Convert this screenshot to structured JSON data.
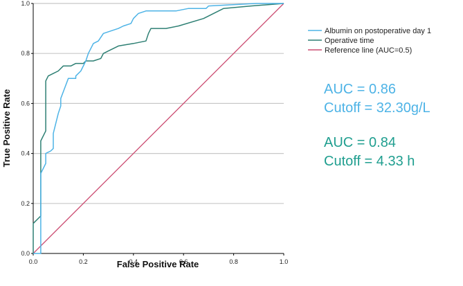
{
  "chart_data": {
    "type": "line",
    "title": "",
    "xlabel": "False Positive Rate",
    "ylabel": "True Positive Rate",
    "xlim": [
      0.0,
      1.0
    ],
    "ylim": [
      0.0,
      1.0
    ],
    "xticks": [
      "0.0",
      "0.2",
      "0.4",
      "0.6",
      "0.8",
      "1.0"
    ],
    "yticks": [
      "0.0",
      "0.2",
      "0.4",
      "0.6",
      "0.8",
      "1.0"
    ],
    "grid": "horizontal",
    "legend_position": "top-right",
    "series": [
      {
        "name": "Albumin  on postoperative day 1",
        "color": "#4db3e6",
        "x": [
          0.0,
          0.02,
          0.03,
          0.03,
          0.05,
          0.05,
          0.07,
          0.08,
          0.08,
          0.1,
          0.11,
          0.11,
          0.14,
          0.17,
          0.17,
          0.19,
          0.21,
          0.22,
          0.24,
          0.26,
          0.28,
          0.31,
          0.34,
          0.36,
          0.39,
          0.4,
          0.42,
          0.45,
          0.49,
          0.57,
          0.62,
          0.69,
          0.7,
          0.89,
          1.0
        ],
        "y": [
          0.0,
          0.0,
          0.0,
          0.32,
          0.36,
          0.4,
          0.41,
          0.42,
          0.48,
          0.56,
          0.59,
          0.62,
          0.7,
          0.7,
          0.71,
          0.73,
          0.77,
          0.8,
          0.84,
          0.85,
          0.88,
          0.89,
          0.9,
          0.91,
          0.92,
          0.94,
          0.96,
          0.97,
          0.97,
          0.97,
          0.98,
          0.98,
          0.99,
          1.0,
          1.0
        ]
      },
      {
        "name": "Operative time",
        "color": "#2d7f73",
        "x": [
          0.0,
          0.0,
          0.03,
          0.03,
          0.05,
          0.05,
          0.06,
          0.08,
          0.1,
          0.12,
          0.15,
          0.17,
          0.2,
          0.21,
          0.24,
          0.27,
          0.28,
          0.3,
          0.34,
          0.4,
          0.45,
          0.46,
          0.47,
          0.53,
          0.58,
          0.68,
          0.76,
          0.87,
          1.0
        ],
        "y": [
          0.0,
          0.12,
          0.15,
          0.45,
          0.49,
          0.69,
          0.71,
          0.72,
          0.73,
          0.75,
          0.75,
          0.76,
          0.76,
          0.77,
          0.77,
          0.78,
          0.8,
          0.81,
          0.83,
          0.84,
          0.85,
          0.88,
          0.9,
          0.9,
          0.91,
          0.94,
          0.98,
          0.99,
          1.0
        ]
      },
      {
        "name": "Reference line (AUC=0.5)",
        "color": "#cc4d72",
        "x": [
          0.0,
          1.0
        ],
        "y": [
          0.0,
          1.0
        ]
      }
    ],
    "annotations": [
      {
        "lines": [
          "AUC = 0.86",
          "Cutoff = 32.30g/L"
        ],
        "color": "#4db3e6"
      },
      {
        "lines": [
          "AUC = 0.84",
          "Cutoff = 4.33 h"
        ],
        "color": "#1f9e8f"
      }
    ]
  }
}
